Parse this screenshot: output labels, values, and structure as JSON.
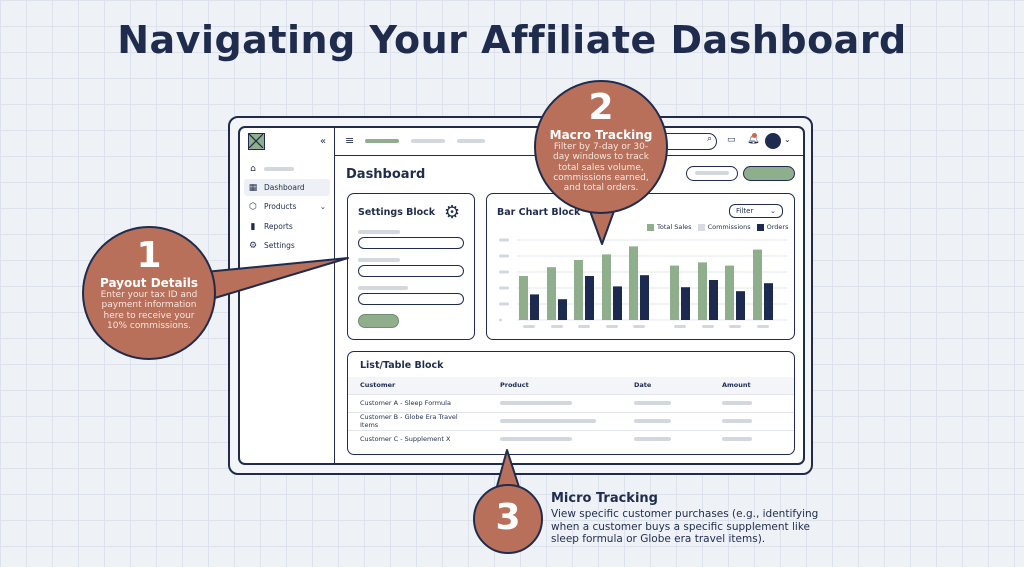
{
  "title": "Navigating Your Affiliate Dashboard",
  "sidebar": {
    "items": [
      {
        "label": "Dashboard",
        "icon": "grid-icon",
        "active": true
      },
      {
        "label": "Products",
        "icon": "box-icon"
      },
      {
        "label": "Reports",
        "icon": "bar-chart-icon"
      },
      {
        "label": "Settings",
        "icon": "gear-icon"
      }
    ]
  },
  "page_title": "Dashboard",
  "settings_block": {
    "title": "Settings Block"
  },
  "bar_chart": {
    "title": "Bar Chart Block",
    "filter": "Filter"
  },
  "chart_data": {
    "type": "bar",
    "title": "Bar Chart Block",
    "grid": true,
    "legend": "top-right",
    "series": [
      {
        "name": "Total Sales",
        "color": "#8fae8c",
        "values": [
          2.75,
          3.3,
          3.75,
          4.1,
          4.6,
          3.4,
          3.6,
          3.4,
          4.4
        ]
      },
      {
        "name": "Commissions",
        "color": "#d8dce2",
        "values": []
      },
      {
        "name": "Orders",
        "color": "#1b2a4e",
        "values": [
          1.6,
          1.3,
          2.75,
          2.1,
          2.8,
          2.05,
          2.5,
          1.8,
          2.3
        ]
      }
    ],
    "ylim": [
      0,
      5
    ]
  },
  "table": {
    "title": "List/Table Block",
    "headers": [
      "Customer",
      "Product",
      "Date",
      "Amount"
    ],
    "rows": [
      [
        "Customer A - Sleep Formula"
      ],
      [
        "Customer B - Globe Era Travel Items"
      ],
      [
        "Customer C - Supplement X"
      ]
    ]
  },
  "callouts": [
    {
      "num": "1",
      "heading": "Payout Details",
      "body": "Enter your tax ID and payment information here to receive your 10% commissions."
    },
    {
      "num": "2",
      "heading": "Macro Tracking",
      "body": "Filter by 7-day or 30-day windows to track total sales volume, commissions earned, and total orders."
    },
    {
      "num": "3",
      "heading": "Micro Tracking",
      "body": "View specific customer purchases (e.g., identifying when a customer buys a specific supplement like sleep formula or Globe era travel items)."
    }
  ],
  "colors": {
    "accent": "#b9705a",
    "navy": "#1f2c4d",
    "green": "#8fae8c"
  }
}
